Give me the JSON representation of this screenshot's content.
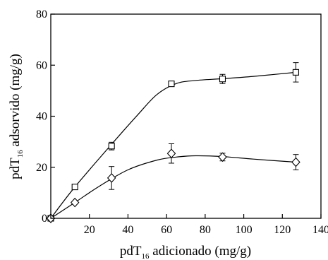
{
  "chart_data": {
    "type": "scatter",
    "xlabel": {
      "pre": "pdT",
      "sub": "16",
      "post": " adicionado (mg/g)"
    },
    "ylabel": {
      "pre": "pdT",
      "sub": "16",
      "post": " adsorvido (mg/g)"
    },
    "xlim": [
      0,
      140
    ],
    "ylim": [
      0,
      80
    ],
    "xticks": [
      20,
      40,
      60,
      80,
      100,
      120,
      140
    ],
    "yticks": [
      0,
      20,
      40,
      60,
      80
    ],
    "grid": false,
    "legend": "none",
    "series": [
      {
        "marker": "square",
        "x": [
          0,
          12.5,
          31.5,
          62.5,
          89,
          127
        ],
        "y": [
          0,
          12.3,
          28.3,
          52.7,
          54.6,
          57.2
        ],
        "error": [
          0,
          0,
          1.5,
          0.8,
          1.8,
          3.8
        ],
        "fit_curve": [
          [
            0,
            0
          ],
          [
            12.5,
            12.3
          ],
          [
            31.5,
            29.0
          ],
          [
            45,
            40.5
          ],
          [
            55,
            48.5
          ],
          [
            65,
            52.8
          ],
          [
            75,
            54.0
          ],
          [
            89,
            54.7
          ],
          [
            105,
            55.6
          ],
          [
            127,
            57.2
          ]
        ]
      },
      {
        "marker": "diamond",
        "x": [
          0,
          12.5,
          31.5,
          62.5,
          89,
          127
        ],
        "y": [
          0,
          6.2,
          15.8,
          25.4,
          24.0,
          22.0
        ],
        "error": [
          0,
          0,
          4.5,
          3.8,
          1.5,
          3.0
        ],
        "fit_curve": [
          [
            0,
            0
          ],
          [
            12.5,
            6.2
          ],
          [
            25,
            12.5
          ],
          [
            40,
            19.0
          ],
          [
            55,
            22.8
          ],
          [
            65,
            24.0
          ],
          [
            75,
            24.5
          ],
          [
            89,
            24.2
          ],
          [
            105,
            23.2
          ],
          [
            127,
            22.0
          ]
        ]
      }
    ]
  }
}
